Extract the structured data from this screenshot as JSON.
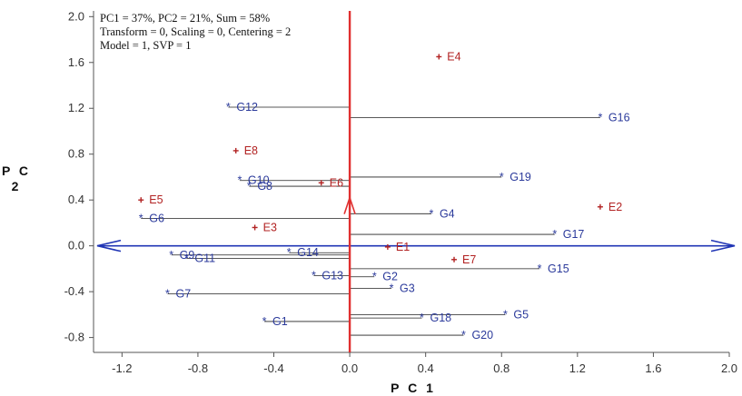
{
  "chart_data": {
    "type": "scatter",
    "title": "",
    "xlabel": "P C 1",
    "ylabel": "P C 2",
    "info_lines": [
      "PC1 = 37%, PC2 = 21%, Sum = 58%",
      "Transform = 0, Scaling = 0, Centering = 2",
      "Model = 1, SVP = 1"
    ],
    "xlim": [
      -1.35,
      2.0
    ],
    "ylim": [
      -0.93,
      2.05
    ],
    "x_ticks": [
      {
        "value": -1.2,
        "label": "-1.2"
      },
      {
        "value": -0.8,
        "label": "-0.8"
      },
      {
        "value": -0.4,
        "label": "-0.4"
      },
      {
        "value": 0.0,
        "label": "0.0"
      },
      {
        "value": 0.4,
        "label": "0.4"
      },
      {
        "value": 0.8,
        "label": "0.8"
      },
      {
        "value": 1.2,
        "label": "1.2"
      },
      {
        "value": 1.6,
        "label": "1.6"
      },
      {
        "value": 2.0,
        "label": "2.0"
      }
    ],
    "y_ticks": [
      {
        "value": 2.0,
        "label": "2.0"
      },
      {
        "value": 1.6,
        "label": "1.6"
      },
      {
        "value": 1.2,
        "label": "1.2"
      },
      {
        "value": 0.8,
        "label": "0.8"
      },
      {
        "value": 0.4,
        "label": "0.4"
      },
      {
        "value": 0.0,
        "label": "0.0"
      },
      {
        "value": -0.4,
        "label": "-0.4"
      },
      {
        "value": -0.8,
        "label": "-0.8"
      }
    ],
    "genotypes": [
      {
        "name": "G1",
        "x": -0.45,
        "y": -0.66
      },
      {
        "name": "G2",
        "x": 0.13,
        "y": -0.27
      },
      {
        "name": "G3",
        "x": 0.22,
        "y": -0.37
      },
      {
        "name": "G4",
        "x": 0.43,
        "y": 0.28
      },
      {
        "name": "G5",
        "x": 0.82,
        "y": -0.6
      },
      {
        "name": "G6",
        "x": -1.1,
        "y": 0.24
      },
      {
        "name": "G7",
        "x": -0.96,
        "y": -0.42
      },
      {
        "name": "G8",
        "x": -0.53,
        "y": 0.52
      },
      {
        "name": "G9",
        "x": -0.94,
        "y": -0.08
      },
      {
        "name": "G10",
        "x": -0.58,
        "y": 0.57
      },
      {
        "name": "G11",
        "x": -0.86,
        "y": -0.11
      },
      {
        "name": "G12",
        "x": -0.64,
        "y": 1.21
      },
      {
        "name": "G13",
        "x": -0.19,
        "y": -0.26
      },
      {
        "name": "G14",
        "x": -0.32,
        "y": -0.06
      },
      {
        "name": "G15",
        "x": 1.0,
        "y": -0.2
      },
      {
        "name": "G16",
        "x": 1.32,
        "y": 1.12
      },
      {
        "name": "G17",
        "x": 1.08,
        "y": 0.1
      },
      {
        "name": "G18",
        "x": 0.38,
        "y": -0.63
      },
      {
        "name": "G19",
        "x": 0.8,
        "y": 0.6
      },
      {
        "name": "G20",
        "x": 0.6,
        "y": -0.78
      }
    ],
    "environments": [
      {
        "name": "E1",
        "x": 0.2,
        "y": -0.01
      },
      {
        "name": "E2",
        "x": 1.32,
        "y": 0.34
      },
      {
        "name": "E3",
        "x": -0.5,
        "y": 0.16
      },
      {
        "name": "E4",
        "x": 0.47,
        "y": 1.65
      },
      {
        "name": "E5",
        "x": -1.1,
        "y": 0.4
      },
      {
        "name": "E6",
        "x": -0.15,
        "y": 0.55
      },
      {
        "name": "E7",
        "x": 0.55,
        "y": -0.12
      },
      {
        "name": "E8",
        "x": -0.6,
        "y": 0.83
      }
    ],
    "colors": {
      "genotype": "#2b3a9b",
      "environment": "#b22222",
      "vertical_axis": "#e03030",
      "horizontal_axis": "#2035b5",
      "projection": "#222222"
    }
  }
}
